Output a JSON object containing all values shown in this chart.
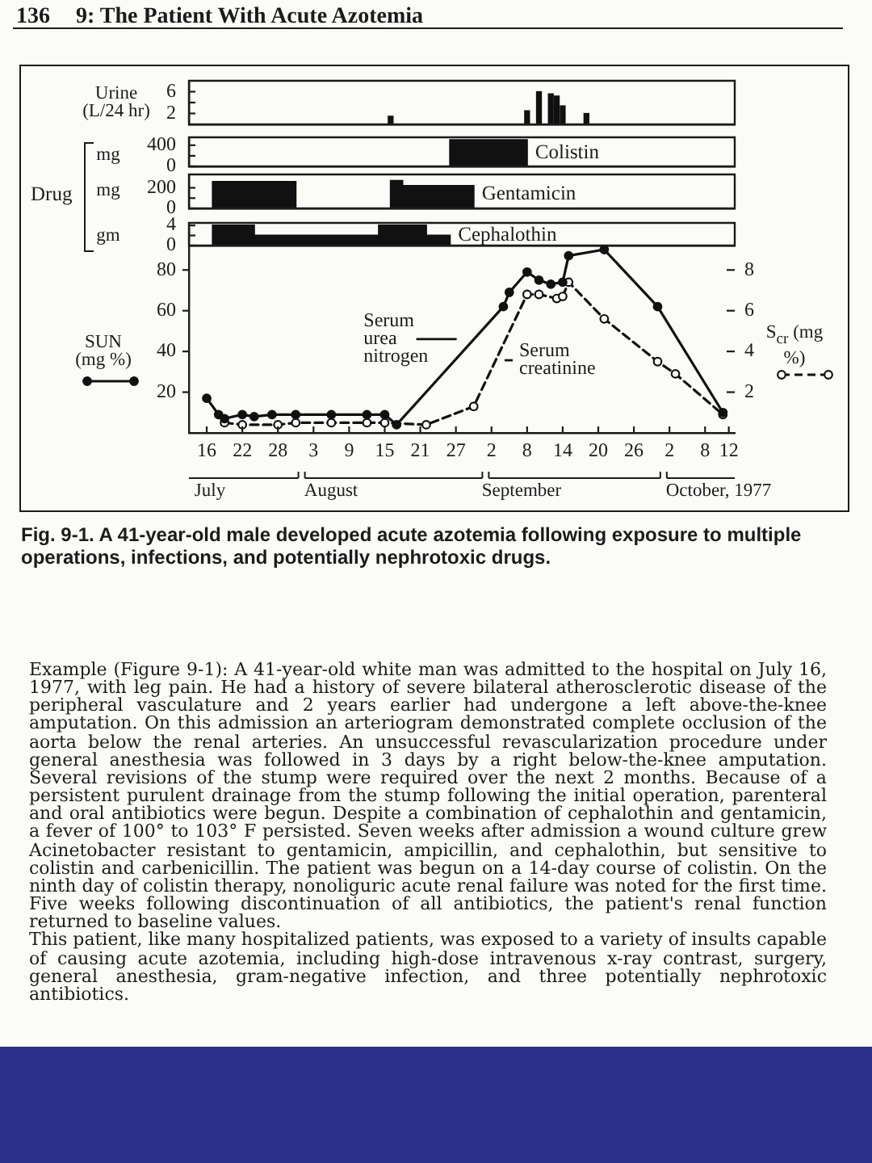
{
  "chart_data": [
    {
      "type": "bar",
      "ylabel": "Urine (L/24 hr)",
      "annotations": [
        "136",
        "9: The Patient With Acute Azotemia"
      ],
      "x": [
        "1977-08-16",
        "1977-09-08",
        "1977-09-10",
        "1977-09-12",
        "1977-09-13",
        "1977-09-14",
        "1977-09-18"
      ],
      "values": [
        1.5,
        2.5,
        6,
        5.6,
        5.2,
        3.4,
        2
      ],
      "color": "#111111",
      "xlim": [
        "1977-07-13",
        "1977-10-13"
      ],
      "ylim": [
        0,
        8
      ],
      "yticks": [
        2,
        {
          "value": 4,
          "label": null
        },
        6
      ],
      "tick_labels": "y",
      "grid": false
    },
    {
      "type": "area",
      "ylabel": "mg",
      "series": [
        {
          "name": "Colistin",
          "color": "#111111",
          "x": [
            "1977-08-26",
            "1977-08-26",
            "1977-09-08",
            "1977-09-08"
          ],
          "values": [
            0,
            500,
            500,
            0
          ]
        }
      ],
      "xlim": [
        "1977-07-13",
        "1977-10-13"
      ],
      "ylim": [
        0,
        550
      ],
      "yticks": [
        0,
        {
          "value": 200,
          "label": null
        },
        400
      ],
      "tick_labels": "y",
      "grid": false
    },
    {
      "type": "area",
      "ylabel": "mg",
      "annotations": [
        "Drug"
      ],
      "series": [
        {
          "name": "Gentamicin",
          "color": "#111111",
          "x": [
            "1977-07-17",
            "1977-07-17",
            "1977-07-31",
            "1977-07-31",
            "1977-08-16",
            "1977-08-16",
            "1977-08-18",
            "1977-08-18",
            "1977-08-30",
            "1977-08-30"
          ],
          "values": [
            0,
            260,
            260,
            0,
            0,
            270,
            270,
            220,
            220,
            0
          ]
        }
      ],
      "xlim": [
        "1977-07-13",
        "1977-10-13"
      ],
      "ylim": [
        0,
        330
      ],
      "yticks": [
        0,
        {
          "value": 100,
          "label": null
        },
        200
      ],
      "tick_labels": "y",
      "grid": false
    },
    {
      "type": "area",
      "ylabel": "gm",
      "series": [
        {
          "name": "Cephalothin",
          "color": "#111111",
          "x": [
            "1977-07-17",
            "1977-07-17",
            "1977-07-24",
            "1977-07-24",
            "1977-08-14",
            "1977-08-14",
            "1977-08-22",
            "1977-08-22",
            "1977-08-26",
            "1977-08-26"
          ],
          "values": [
            0,
            4,
            4,
            2,
            2,
            4,
            4,
            2,
            2,
            0
          ]
        }
      ],
      "xlim": [
        "1977-07-13",
        "1977-10-13"
      ],
      "ylim": [
        0,
        4.5
      ],
      "yticks": [
        0,
        {
          "value": 2,
          "label": null
        },
        4
      ],
      "tick_labels": "y",
      "grid": false
    },
    {
      "type": "line",
      "ylabel": "SUN (mg %)",
      "y2label": "S$_{cr}$ (mg %)",
      "legend": "center",
      "grid": false,
      "xlim": [
        "1977-07-13",
        "1977-10-13"
      ],
      "xticks": [
        {
          "value": "1977-07-16",
          "label": "16"
        },
        {
          "value": "1977-07-22",
          "label": "22"
        },
        {
          "value": "1977-07-28",
          "label": "28"
        },
        {
          "value": "1977-08-03",
          "label": "3"
        },
        {
          "value": "1977-08-09",
          "label": "9"
        },
        {
          "value": "1977-08-15",
          "label": "15"
        },
        {
          "value": "1977-08-21",
          "label": "21"
        },
        {
          "value": "1977-08-27",
          "label": "27"
        },
        {
          "value": "1977-09-02",
          "label": "2"
        },
        {
          "value": "1977-09-08",
          "label": "8"
        },
        {
          "value": "1977-09-14",
          "label": "14"
        },
        {
          "value": "1977-09-20",
          "label": "20"
        },
        {
          "value": "1977-09-26",
          "label": "26"
        },
        {
          "value": "1977-10-02",
          "label": "2"
        },
        {
          "value": "1977-10-08",
          "label": "8"
        },
        {
          "value": "1977-10-12",
          "label": "12"
        }
      ],
      "ylim": [
        0,
        92
      ],
      "yticks": [
        20,
        40,
        60,
        80
      ],
      "y2lim": [
        0,
        9.2
      ],
      "y2ticks": [
        2,
        4,
        6,
        8
      ],
      "series": [
        {
          "name": "Serum urea nitrogen",
          "color": "#111111",
          "marker": "circle",
          "line_style": "solid",
          "x": [
            "1977-07-16",
            "1977-07-18",
            "1977-07-19",
            "1977-07-22",
            "1977-07-24",
            "1977-07-27",
            "1977-07-31",
            "1977-08-06",
            "1977-08-12",
            "1977-08-15",
            "1977-08-17",
            "1977-09-04",
            "1977-09-05",
            "1977-09-08",
            "1977-09-10",
            "1977-09-12",
            "1977-09-14",
            "1977-09-15",
            "1977-09-21",
            "1977-09-30",
            "1977-10-11"
          ],
          "values": [
            17,
            9,
            7,
            9,
            8,
            9,
            9,
            9,
            9,
            9,
            4,
            62,
            69,
            79,
            75,
            73,
            74,
            87,
            90,
            62,
            10
          ]
        },
        {
          "name": "Serum creatinine",
          "color": "#111111",
          "marker": "circle",
          "line_style": "dashed",
          "axis": "y2",
          "x": [
            "1977-07-19",
            "1977-07-22",
            "1977-07-28",
            "1977-07-31",
            "1977-08-06",
            "1977-08-12",
            "1977-08-15",
            "1977-08-22",
            "1977-08-30",
            "1977-09-08",
            "1977-09-10",
            "1977-09-13",
            "1977-09-14",
            "1977-09-15",
            "1977-09-21",
            "1977-09-30",
            "1977-10-03",
            "1977-10-11"
          ],
          "values": [
            0.5,
            0.4,
            0.4,
            0.5,
            0.5,
            0.5,
            0.5,
            0.4,
            1.3,
            6.8,
            6.8,
            6.6,
            6.7,
            7.4,
            5.6,
            3.5,
            2.9,
            0.9
          ]
        }
      ],
      "annotations": [
        "July",
        "August",
        "September",
        "October, 1977",
        "Fig. 9-1. A 41-year-old male developed acute azotemia following exposure to multiple operations, infections, and potentially nephrotoxic drugs.",
        "Example (Figure 9-1): A 41-year-old white man was admitted to the hospital on July 16, 1977, with leg pain. He had a history of severe bilateral atherosclerotic disease of the peripheral vasculature and 2 years earlier had undergone a left above-the-knee amputation. On this admission an arteriogram demonstrated complete occlusion of the aorta below the renal arteries. An unsuccessful revascularization procedure under general anesthesia was followed in 3 days by a right below-the-knee amputation. Several revisions of the stump were required over the next 2 months. Because of a persistent purulent drainage from the stump following the initial operation, parenteral and oral antibiotics were begun. Despite a combination of cephalothin and gentamicin, a fever of 100° to 103° F persisted. Seven weeks after admission a wound culture grew Acinetobacter resistant to gentamicin, ampicillin, and cephalothin, but sensitive to colistin and carbenicillin. The patient was begun on a 14-day course of colistin. On the ninth day of colistin therapy, nonoliguric acute renal failure was noted for the first time. Five weeks following discontinuation of all antibiotics, the patient's renal function returned to baseline values.",
        "This patient, like many hospitalized patients, was exposed to a variety of insults capable of causing acute azotemia, including high-dose intravenous x-ray contrast, surgery, general anesthesia, gram-negative infection, and three potentially nephrotoxic antibiotics."
      ]
    }
  ]
}
